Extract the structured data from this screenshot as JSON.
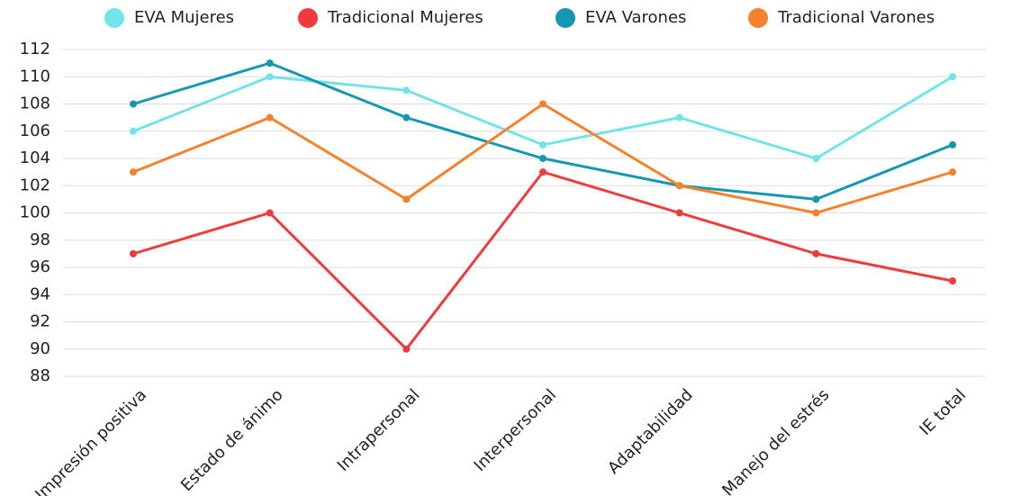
{
  "chart_data": {
    "type": "line",
    "categories": [
      "Impresión positiva",
      "Estado de ánimo",
      "Intrapersonal",
      "Interpersonal",
      "Adaptabilidad",
      "Manejo del estrés",
      "IE total"
    ],
    "series": [
      {
        "name": "EVA Mujeres",
        "color": "#72e3e8",
        "values": [
          106,
          110,
          109,
          105,
          107,
          104,
          110
        ]
      },
      {
        "name": "Tradicional Mujeres",
        "color": "#f03a3e",
        "values": [
          97,
          100,
          90,
          103,
          100,
          97,
          95
        ]
      },
      {
        "name": "EVA Varones",
        "color": "#1497b1",
        "values": [
          108,
          111,
          107,
          104,
          102,
          101,
          105
        ]
      },
      {
        "name": "Tradicional Varones",
        "color": "#f6812b",
        "values": [
          103,
          107,
          101,
          108,
          102,
          100,
          103
        ]
      }
    ],
    "ylim": [
      88,
      112
    ],
    "yticks": [
      88,
      90,
      92,
      94,
      96,
      98,
      100,
      102,
      104,
      106,
      108,
      110,
      112
    ],
    "grid": true,
    "legend": "top"
  }
}
